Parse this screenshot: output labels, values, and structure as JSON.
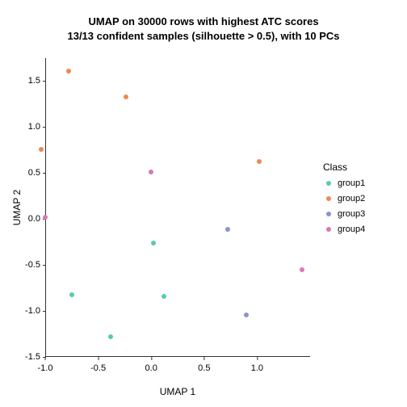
{
  "title_line1": "UMAP on 30000 rows with highest ATC scores",
  "title_line2": "13/13 confident samples (silhouette > 0.5), with 10 PCs",
  "xlabel": "UMAP 1",
  "ylabel": "UMAP 2",
  "chart": {
    "type": "scatter",
    "xlim": [
      -1.0,
      1.5
    ],
    "ylim": [
      -1.5,
      1.75
    ],
    "xticks": [
      -1.0,
      -0.5,
      0.0,
      0.5,
      1.0
    ],
    "yticks": [
      -1.5,
      -1.0,
      -0.5,
      0.0,
      0.5,
      1.0,
      1.5
    ],
    "xtick_labels": [
      "-1.0",
      "-0.5",
      "0.0",
      "0.5",
      "1.0"
    ],
    "ytick_labels": [
      "-1.5",
      "-1.0",
      "-0.5",
      "0.0",
      "0.5",
      "1.0",
      "1.5"
    ],
    "background_color": "#ffffff",
    "axis_color": "#333333",
    "tick_fontsize": 11,
    "label_fontsize": 12,
    "title_fontsize": 13,
    "point_size": 6,
    "points": [
      {
        "x": 0.02,
        "y": -0.26,
        "class": "group1"
      },
      {
        "x": -0.75,
        "y": -0.82,
        "class": "group1"
      },
      {
        "x": -0.38,
        "y": -1.28,
        "class": "group1"
      },
      {
        "x": 0.12,
        "y": -0.84,
        "class": "group1"
      },
      {
        "x": -0.78,
        "y": 1.61,
        "class": "group2"
      },
      {
        "x": -0.24,
        "y": 1.33,
        "class": "group2"
      },
      {
        "x": -1.04,
        "y": 0.76,
        "class": "group2"
      },
      {
        "x": 1.02,
        "y": 0.63,
        "class": "group2"
      },
      {
        "x": 0.72,
        "y": -0.11,
        "class": "group3"
      },
      {
        "x": 0.9,
        "y": -1.04,
        "class": "group3"
      },
      {
        "x": -1.0,
        "y": 0.02,
        "class": "group4"
      },
      {
        "x": 0.0,
        "y": 0.51,
        "class": "group4"
      },
      {
        "x": 1.42,
        "y": -0.55,
        "class": "group4"
      }
    ]
  },
  "legend": {
    "title": "Class",
    "items": [
      {
        "label": "group1",
        "color": "#5bc9b2"
      },
      {
        "label": "group2",
        "color": "#ef8854"
      },
      {
        "label": "group3",
        "color": "#8b95c9"
      },
      {
        "label": "group4",
        "color": "#d979b1"
      }
    ]
  },
  "class_colors": {
    "group1": "#5bc9b2",
    "group2": "#ef8854",
    "group3": "#8b95c9",
    "group4": "#d979b1"
  }
}
